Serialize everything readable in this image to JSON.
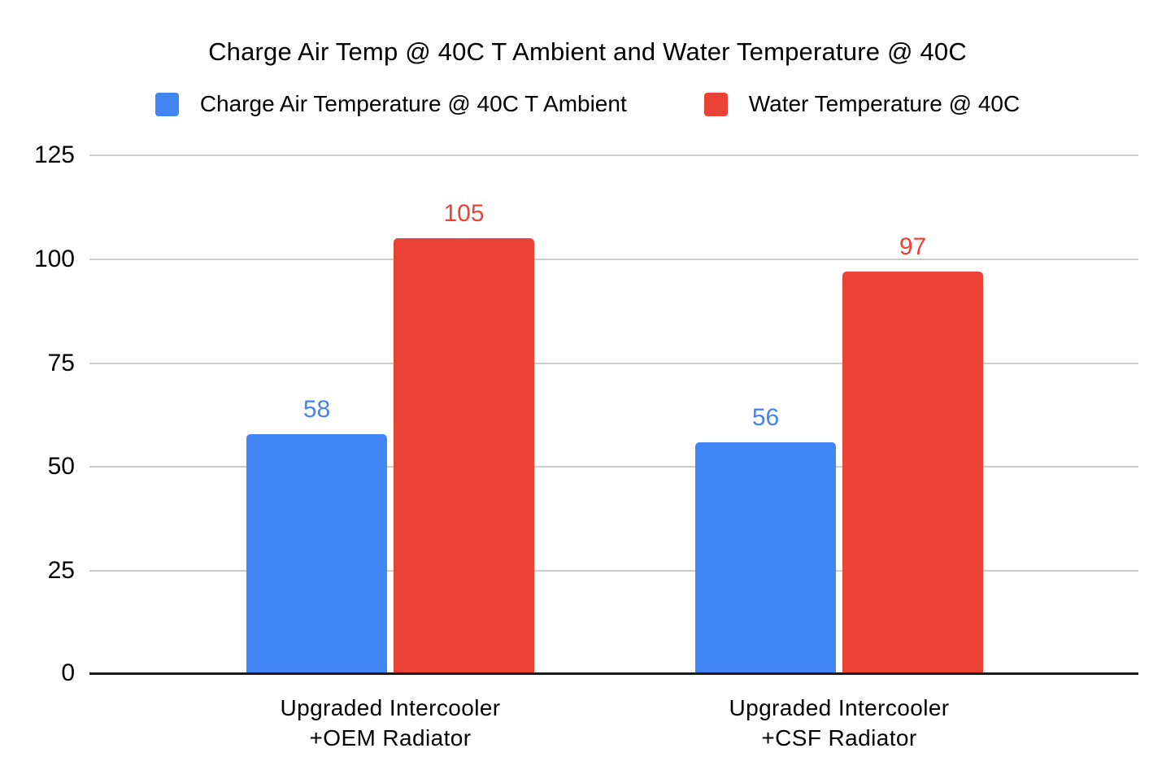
{
  "title": "Charge Air Temp @ 40C T Ambient and Water Temperature @ 40C",
  "legend": {
    "items": [
      {
        "label": "Charge Air Temperature @ 40C T Ambient",
        "color": "#4285F4"
      },
      {
        "label": "Water Temperature @ 40C",
        "color": "#EA4335"
      }
    ]
  },
  "colors": {
    "series_blue": "#4285F4",
    "series_red": "#EA4335",
    "gridline": "#cccccc",
    "axis_line": "#1a1a1a",
    "background": "#ffffff",
    "text": "#000000"
  },
  "chart_data": {
    "type": "bar",
    "title": "Charge Air Temp @ 40C T Ambient and Water Temperature @ 40C",
    "categories": [
      "Upgraded Intercooler\n+OEM Radiator",
      "Upgraded Intercooler\n+CSF Radiator"
    ],
    "series": [
      {
        "name": "Charge Air Temperature @ 40C T Ambient",
        "color": "#4285F4",
        "values": [
          58,
          56
        ]
      },
      {
        "name": "Water Temperature @ 40C",
        "color": "#EA4335",
        "values": [
          105,
          97
        ]
      }
    ],
    "xlabel": "",
    "ylabel": "",
    "ylim": [
      0,
      125
    ],
    "yticks": [
      0,
      25,
      50,
      75,
      100,
      125
    ],
    "grid": true,
    "legend_position": "top",
    "data_labels": true
  }
}
